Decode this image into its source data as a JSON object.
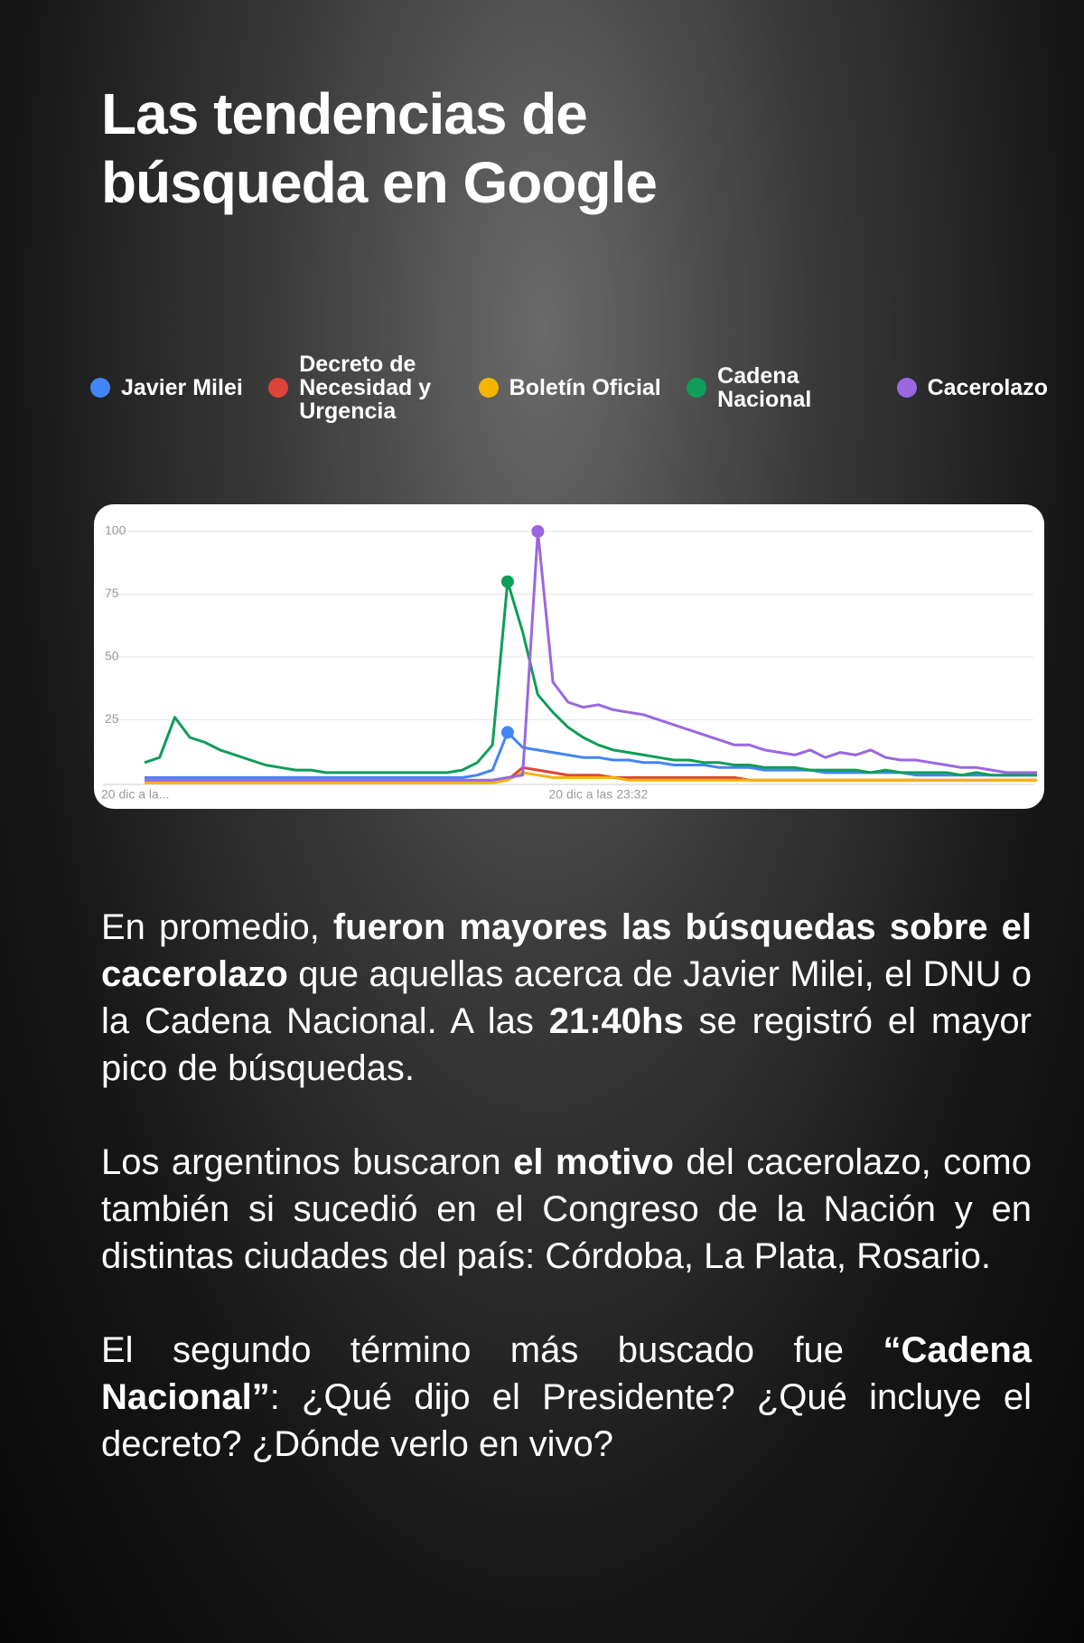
{
  "title": "Las tendencias de búsqueda en Google",
  "chart_data": {
    "type": "line",
    "categories": [
      "20 dic a la...",
      null,
      null,
      null,
      null,
      null,
      null,
      null,
      null,
      null,
      null,
      null,
      null,
      null,
      null,
      null,
      null,
      null,
      null,
      null,
      null,
      null,
      null,
      null,
      null,
      null,
      null,
      null,
      null,
      null,
      "20 dic a las 23:32",
      null,
      null,
      null,
      null,
      null,
      null,
      null,
      null,
      null,
      null,
      null,
      null,
      null,
      null,
      null,
      null,
      null,
      null,
      null,
      null,
      null,
      null,
      null,
      null,
      null,
      null,
      null,
      null,
      null
    ],
    "ylim": [
      0,
      100
    ],
    "yticks": [
      25,
      50,
      75,
      100
    ],
    "grid": true,
    "series": [
      {
        "name": "Javier Milei",
        "color": "#4285f4",
        "values": [
          2,
          2,
          2,
          2,
          2,
          2,
          2,
          2,
          2,
          2,
          2,
          2,
          2,
          2,
          2,
          2,
          2,
          2,
          2,
          2,
          2,
          2,
          3,
          5,
          20,
          14,
          13,
          12,
          11,
          10,
          10,
          9,
          9,
          8,
          8,
          7,
          7,
          7,
          6,
          6,
          6,
          5,
          5,
          5,
          5,
          4,
          4,
          4,
          4,
          4,
          4,
          3,
          3,
          3,
          3,
          3,
          3,
          3,
          3,
          3
        ]
      },
      {
        "name": "Decreto de Necesidad y Urgencia",
        "color": "#db4437",
        "values": [
          0,
          0,
          0,
          0,
          0,
          0,
          0,
          0,
          0,
          0,
          0,
          0,
          0,
          0,
          0,
          0,
          0,
          0,
          0,
          0,
          0,
          0,
          0,
          0,
          1,
          6,
          5,
          4,
          3,
          3,
          3,
          2,
          2,
          2,
          2,
          2,
          2,
          2,
          2,
          2,
          1,
          1,
          1,
          1,
          1,
          1,
          1,
          1,
          1,
          1,
          1,
          1,
          1,
          1,
          1,
          1,
          1,
          1,
          1,
          1
        ]
      },
      {
        "name": "Boletín Oficial",
        "color": "#f4b400",
        "values": [
          0,
          0,
          0,
          0,
          0,
          0,
          0,
          0,
          0,
          0,
          0,
          0,
          0,
          0,
          0,
          0,
          0,
          0,
          0,
          0,
          0,
          0,
          0,
          0,
          1,
          4,
          3,
          2,
          2,
          2,
          2,
          2,
          1,
          1,
          1,
          1,
          1,
          1,
          1,
          1,
          1,
          1,
          1,
          1,
          1,
          1,
          1,
          1,
          1,
          1,
          1,
          1,
          1,
          1,
          1,
          1,
          1,
          1,
          1,
          1
        ]
      },
      {
        "name": "Cadena Nacional",
        "color": "#0f9d58",
        "values": [
          8,
          10,
          26,
          18,
          16,
          13,
          11,
          9,
          7,
          6,
          5,
          5,
          4,
          4,
          4,
          4,
          4,
          4,
          4,
          4,
          4,
          5,
          8,
          15,
          80,
          60,
          35,
          28,
          22,
          18,
          15,
          13,
          12,
          11,
          10,
          9,
          9,
          8,
          8,
          7,
          7,
          6,
          6,
          6,
          5,
          5,
          5,
          5,
          4,
          5,
          4,
          4,
          4,
          4,
          3,
          4,
          3,
          3,
          3,
          3
        ]
      },
      {
        "name": "Cacerolazo",
        "color": "#9a67e0",
        "values": [
          1,
          1,
          1,
          1,
          1,
          1,
          1,
          1,
          1,
          1,
          1,
          1,
          1,
          1,
          1,
          1,
          1,
          1,
          1,
          1,
          1,
          1,
          1,
          1,
          2,
          3,
          100,
          40,
          32,
          30,
          31,
          29,
          28,
          27,
          25,
          23,
          21,
          19,
          17,
          15,
          15,
          13,
          12,
          11,
          13,
          10,
          12,
          11,
          13,
          10,
          9,
          9,
          8,
          7,
          6,
          6,
          5,
          4,
          4,
          4
        ]
      }
    ]
  },
  "paragraphs": [
    [
      {
        "text": "En promedio, "
      },
      {
        "text": "fueron mayores las búsquedas sobre el cacerolazo",
        "bold": true
      },
      {
        "text": " que aquellas acerca de Javier Milei, el DNU o la Cadena Nacional. A las "
      },
      {
        "text": "21:40hs",
        "bold": true
      },
      {
        "text": " se registró el mayor pico de búsquedas."
      }
    ],
    [
      {
        "text": "Los argentinos buscaron "
      },
      {
        "text": "el motivo",
        "bold": true
      },
      {
        "text": " del cacerolazo, como también si sucedió en el Congreso de la Nación y en distintas ciudades del país: Córdoba, La Plata, Rosario."
      }
    ],
    [
      {
        "text": "El segundo término más buscado fue "
      },
      {
        "text": "“Cadena Nacional”",
        "bold": true
      },
      {
        "text": ": ¿Qué dijo el Presidente? ¿Qué incluye el decreto? ¿Dónde verlo en vivo?"
      }
    ]
  ]
}
